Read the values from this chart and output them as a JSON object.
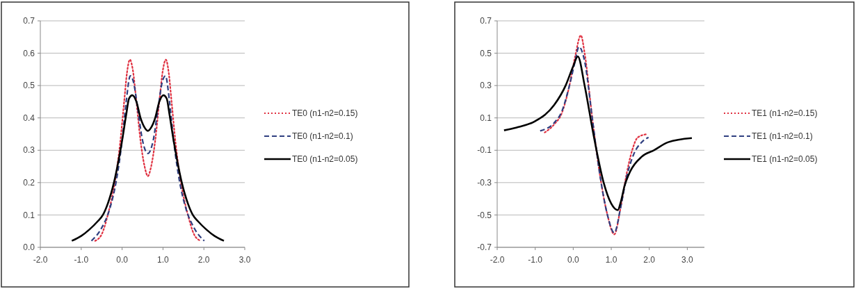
{
  "chart_data": [
    {
      "type": "line",
      "xlim": [
        -2,
        3
      ],
      "ylim": [
        0,
        0.7
      ],
      "xticks": [
        {
          "value": -2,
          "label": "-2.0"
        },
        {
          "value": -1,
          "label": "-1.0"
        },
        {
          "value": 0,
          "label": "0.0"
        },
        {
          "value": 1,
          "label": "1.0"
        },
        {
          "value": 2,
          "label": "2.0"
        },
        {
          "value": 3,
          "label": "3.0"
        }
      ],
      "yticks": [
        {
          "value": 0,
          "label": "0.0"
        },
        {
          "value": 0.1,
          "label": "0.1"
        },
        {
          "value": 0.2,
          "label": "0.2"
        },
        {
          "value": 0.3,
          "label": "0.3"
        },
        {
          "value": 0.4,
          "label": "0.4"
        },
        {
          "value": 0.5,
          "label": "0.5"
        },
        {
          "value": 0.6,
          "label": "0.6"
        },
        {
          "value": 0.7,
          "label": "0.7"
        }
      ],
      "grid": "y",
      "legend": "right",
      "series": [
        {
          "name": "TE0 (n1-n2=0.15)",
          "color": "#e03040",
          "line_style": "dotted",
          "x": [
            -0.66,
            -0.5,
            -0.35,
            -0.18,
            -0.05,
            0.05,
            0.12,
            0.19,
            0.26,
            0.35,
            0.45,
            0.55,
            0.63,
            0.71,
            0.81,
            0.91,
            1.0,
            1.07,
            1.14,
            1.21,
            1.31,
            1.44,
            1.61,
            1.76,
            1.92
          ],
          "values": [
            0.02,
            0.04,
            0.1,
            0.2,
            0.32,
            0.45,
            0.54,
            0.58,
            0.55,
            0.45,
            0.33,
            0.25,
            0.22,
            0.25,
            0.33,
            0.45,
            0.55,
            0.58,
            0.54,
            0.45,
            0.32,
            0.2,
            0.1,
            0.04,
            0.02
          ]
        },
        {
          "name": "TE0 (n1-n2=0.1)",
          "color": "#2f3f80",
          "line_style": "dashed",
          "x": [
            -0.75,
            -0.5,
            -0.3,
            -0.15,
            0.0,
            0.1,
            0.2,
            0.28,
            0.38,
            0.5,
            0.63,
            0.76,
            0.88,
            0.98,
            1.06,
            1.16,
            1.26,
            1.41,
            1.56,
            1.76,
            2.01
          ],
          "values": [
            0.02,
            0.06,
            0.12,
            0.2,
            0.33,
            0.45,
            0.53,
            0.51,
            0.43,
            0.33,
            0.29,
            0.33,
            0.43,
            0.51,
            0.53,
            0.45,
            0.33,
            0.2,
            0.12,
            0.06,
            0.02
          ]
        },
        {
          "name": "TE0 (n1-n2=0.05)",
          "color": "#000000",
          "line_style": "solid",
          "x": [
            -1.23,
            -1.0,
            -0.8,
            -0.6,
            -0.47,
            -0.35,
            -0.2,
            0.0,
            0.1,
            0.17,
            0.25,
            0.35,
            0.45,
            0.55,
            0.63,
            0.71,
            0.81,
            0.91,
            1.01,
            1.09,
            1.16,
            1.26,
            1.46,
            1.61,
            1.73,
            1.86,
            2.06,
            2.26,
            2.49
          ],
          "values": [
            0.02,
            0.035,
            0.055,
            0.08,
            0.1,
            0.135,
            0.2,
            0.33,
            0.41,
            0.46,
            0.47,
            0.45,
            0.4,
            0.37,
            0.36,
            0.37,
            0.4,
            0.45,
            0.47,
            0.46,
            0.41,
            0.33,
            0.2,
            0.135,
            0.1,
            0.08,
            0.055,
            0.035,
            0.02
          ]
        }
      ]
    },
    {
      "type": "line",
      "xlim": [
        -2,
        3.45
      ],
      "ylim": [
        -0.7,
        0.7
      ],
      "xticks": [
        {
          "value": -2,
          "label": "-2.0"
        },
        {
          "value": -1,
          "label": "-1.0"
        },
        {
          "value": 0,
          "label": "0.0"
        },
        {
          "value": 1,
          "label": "1.0"
        },
        {
          "value": 2,
          "label": "2.0"
        },
        {
          "value": 3,
          "label": "3.0"
        }
      ],
      "yticks": [
        {
          "value": -0.7,
          "label": "-0.7"
        },
        {
          "value": -0.5,
          "label": "-0.5"
        },
        {
          "value": -0.3,
          "label": "-0.3"
        },
        {
          "value": -0.1,
          "label": "-0.1"
        },
        {
          "value": 0.1,
          "label": "0.1"
        },
        {
          "value": 0.3,
          "label": "0.3"
        },
        {
          "value": 0.5,
          "label": "0.5"
        },
        {
          "value": 0.7,
          "label": "0.7"
        }
      ],
      "grid": "y",
      "legend": "right",
      "series": [
        {
          "name": "TE1 (n1-n2=0.15)",
          "color": "#e03040",
          "line_style": "dotted",
          "x": [
            -0.75,
            -0.5,
            -0.3,
            -0.1,
            0.05,
            0.2,
            0.3,
            0.5,
            0.7,
            0.9,
            1.08,
            1.25,
            1.4,
            1.55,
            1.7,
            1.95
          ],
          "values": [
            0.01,
            0.06,
            0.13,
            0.3,
            0.48,
            0.61,
            0.5,
            0.1,
            -0.25,
            -0.5,
            -0.62,
            -0.45,
            -0.25,
            -0.1,
            -0.02,
            0.0
          ]
        },
        {
          "name": "TE1 (n1-n2=0.1)",
          "color": "#2f3f80",
          "line_style": "dashed",
          "x": [
            -0.87,
            -0.5,
            -0.3,
            -0.1,
            0.05,
            0.15,
            0.3,
            0.5,
            0.7,
            0.9,
            1.08,
            1.25,
            1.4,
            1.6,
            1.8,
            1.98
          ],
          "values": [
            0.02,
            0.07,
            0.14,
            0.3,
            0.45,
            0.54,
            0.45,
            0.1,
            -0.25,
            -0.5,
            -0.61,
            -0.45,
            -0.27,
            -0.12,
            -0.05,
            -0.02
          ]
        },
        {
          "name": "TE1 (n1-n2=0.05)",
          "color": "#000000",
          "line_style": "solid",
          "x": [
            -1.82,
            -1.5,
            -1.0,
            -0.5,
            -0.2,
            0.0,
            0.12,
            0.3,
            0.53,
            0.8,
            1.0,
            1.17,
            1.25,
            1.35,
            1.5,
            1.8,
            2.12,
            2.5,
            3.12
          ],
          "values": [
            0.023,
            0.04,
            0.08,
            0.18,
            0.3,
            0.42,
            0.48,
            0.3,
            0.0,
            -0.3,
            -0.43,
            -0.47,
            -0.42,
            -0.32,
            -0.23,
            -0.14,
            -0.1,
            -0.05,
            -0.025
          ]
        }
      ]
    }
  ]
}
